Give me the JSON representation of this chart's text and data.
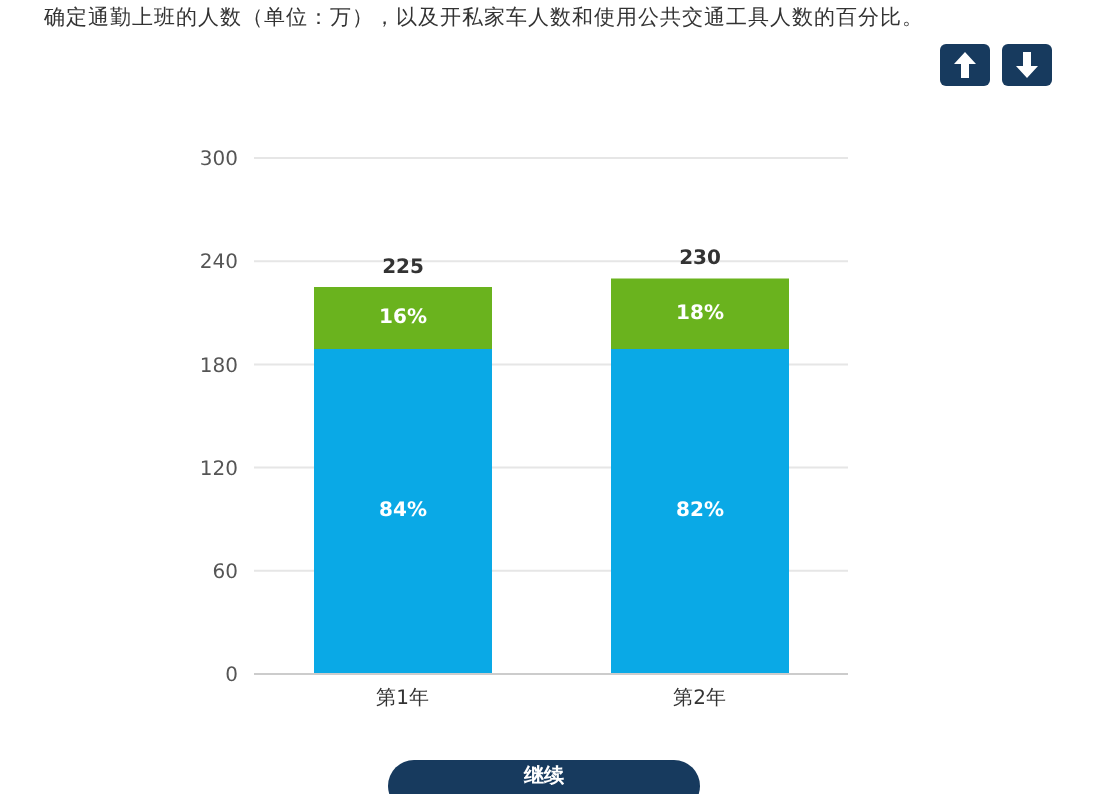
{
  "chart_data": {
    "type": "bar",
    "title": "确定通勤上班的人数（单位：万），以及开私家车人数和使用公共交通工具人数的百分比。",
    "categories": [
      "第1年",
      "第2年"
    ],
    "stacked": true,
    "series": [
      {
        "color": "#0aa9e6",
        "values": [
          189,
          189
        ]
      },
      {
        "color": "#6ab31e",
        "values": [
          36,
          41
        ]
      }
    ],
    "totals": [
      "225",
      "230"
    ],
    "ylim": [
      0,
      300
    ],
    "yticks": [
      0,
      60,
      120,
      180,
      240,
      300
    ],
    "grid": "y",
    "legend": false,
    "annotations": [
      "84%",
      "82%",
      "16%",
      "18%",
      "继续"
    ]
  }
}
